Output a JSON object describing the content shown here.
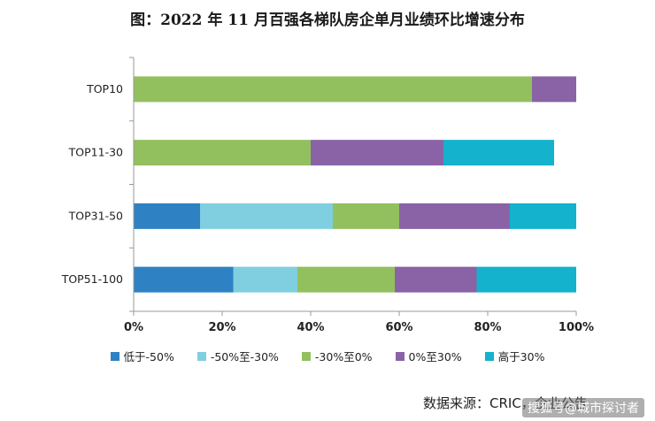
{
  "source": "数据来源：CRIC，企业公告",
  "watermark": "搜狐号@城市探讨者",
  "chart_data": {
    "type": "bar",
    "orientation": "horizontal",
    "stacked": true,
    "title": "图：2022 年 11 月百强各梯队房企单月业绩环比增速分布",
    "xlabel": "",
    "ylabel": "",
    "xlim": [
      0,
      100
    ],
    "x_ticks": [
      "0%",
      "20%",
      "40%",
      "60%",
      "80%",
      "100%"
    ],
    "grid": false,
    "legend_position": "bottom",
    "categories": [
      "TOP10",
      "TOP11-30",
      "TOP31-50",
      "TOP51-100"
    ],
    "series": [
      {
        "name": "低于-50%",
        "color": "#2e82c4",
        "values": [
          0,
          0,
          15,
          22.5
        ]
      },
      {
        "name": "-50%至-30%",
        "color": "#7fcfe0",
        "values": [
          0,
          0,
          30,
          14.5
        ]
      },
      {
        "name": "-30%至0%",
        "color": "#93c05e",
        "values": [
          90,
          40,
          15,
          22
        ]
      },
      {
        "name": "0%至30%",
        "color": "#8a63a6",
        "values": [
          10,
          30,
          25,
          18.5
        ]
      },
      {
        "name": "高于30%",
        "color": "#14b2cc",
        "values": [
          0,
          25,
          15,
          22.5
        ]
      }
    ]
  }
}
